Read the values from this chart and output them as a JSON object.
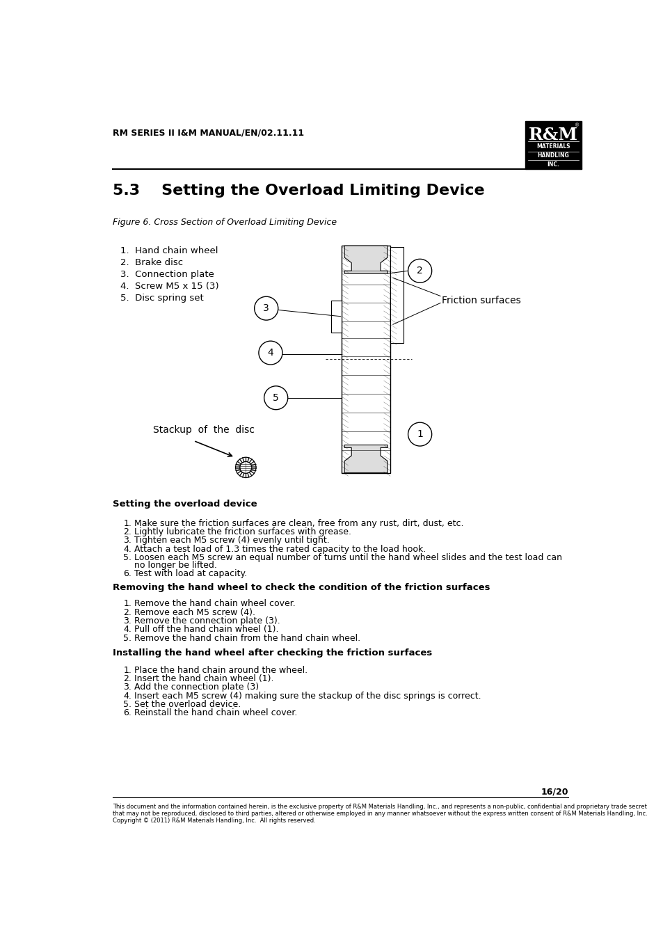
{
  "bg_color": "#ffffff",
  "header_text": "RM SERIES II I&M MANUAL/EN/02.11.11",
  "section_title": "5.3    Setting the Overload Limiting Device",
  "figure_caption": "Figure 6. Cross Section of Overload Limiting Device",
  "numbered_list": [
    "Hand chain wheel",
    "Brake disc",
    "Connection plate",
    "Screw M5 x 15 (3)",
    "Disc spring set"
  ],
  "friction_label": "Friction surfaces",
  "stackup_label": "Stackup  of  the  disc",
  "setting_header": "Setting the overload device",
  "setting_steps": [
    "Make sure the friction surfaces are clean, free from any rust, dirt, dust, etc.",
    "Lightly lubricate the friction surfaces with grease.",
    "Tighten each M5 screw (4) evenly until tight.",
    "Attach a test load of 1.3 times the rated capacity to the load hook.",
    "Loosen each M5 screw an equal number of turns until the hand wheel slides and the test load can\nno longer be lifted.",
    "Test with load at capacity."
  ],
  "removing_header": "Removing the hand wheel to check the condition of the friction surfaces",
  "removing_steps": [
    "Remove the hand chain wheel cover.",
    "Remove each M5 screw (4).",
    "Remove the connection plate (3).",
    "Pull off the hand chain wheel (1).",
    "Remove the hand chain from the hand chain wheel."
  ],
  "installing_header": "Installing the hand wheel after checking the friction surfaces",
  "installing_steps": [
    "Place the hand chain around the wheel.",
    "Insert the hand chain wheel (1).",
    "Add the connection plate (3)",
    "Insert each M5 screw (4) making sure the stackup of the disc springs is correct.",
    "Set the overload device.",
    "Reinstall the hand chain wheel cover."
  ],
  "page_number": "16/20",
  "footer_text": "This document and the information contained herein, is the exclusive property of R&M Materials Handling, Inc., and represents a non-public, confidential and proprietary trade secret\nthat may not be reproduced, disclosed to third parties, altered or otherwise employed in any manner whatsoever without the express written consent of R&M Materials Handling, Inc.\nCopyright © (2011) R&M Materials Handling, Inc.  All rights reserved.",
  "text_color": "#000000",
  "header_font_size": 9,
  "title_font_size": 16,
  "body_font_size": 9,
  "section_bold_font_size": 9.5
}
